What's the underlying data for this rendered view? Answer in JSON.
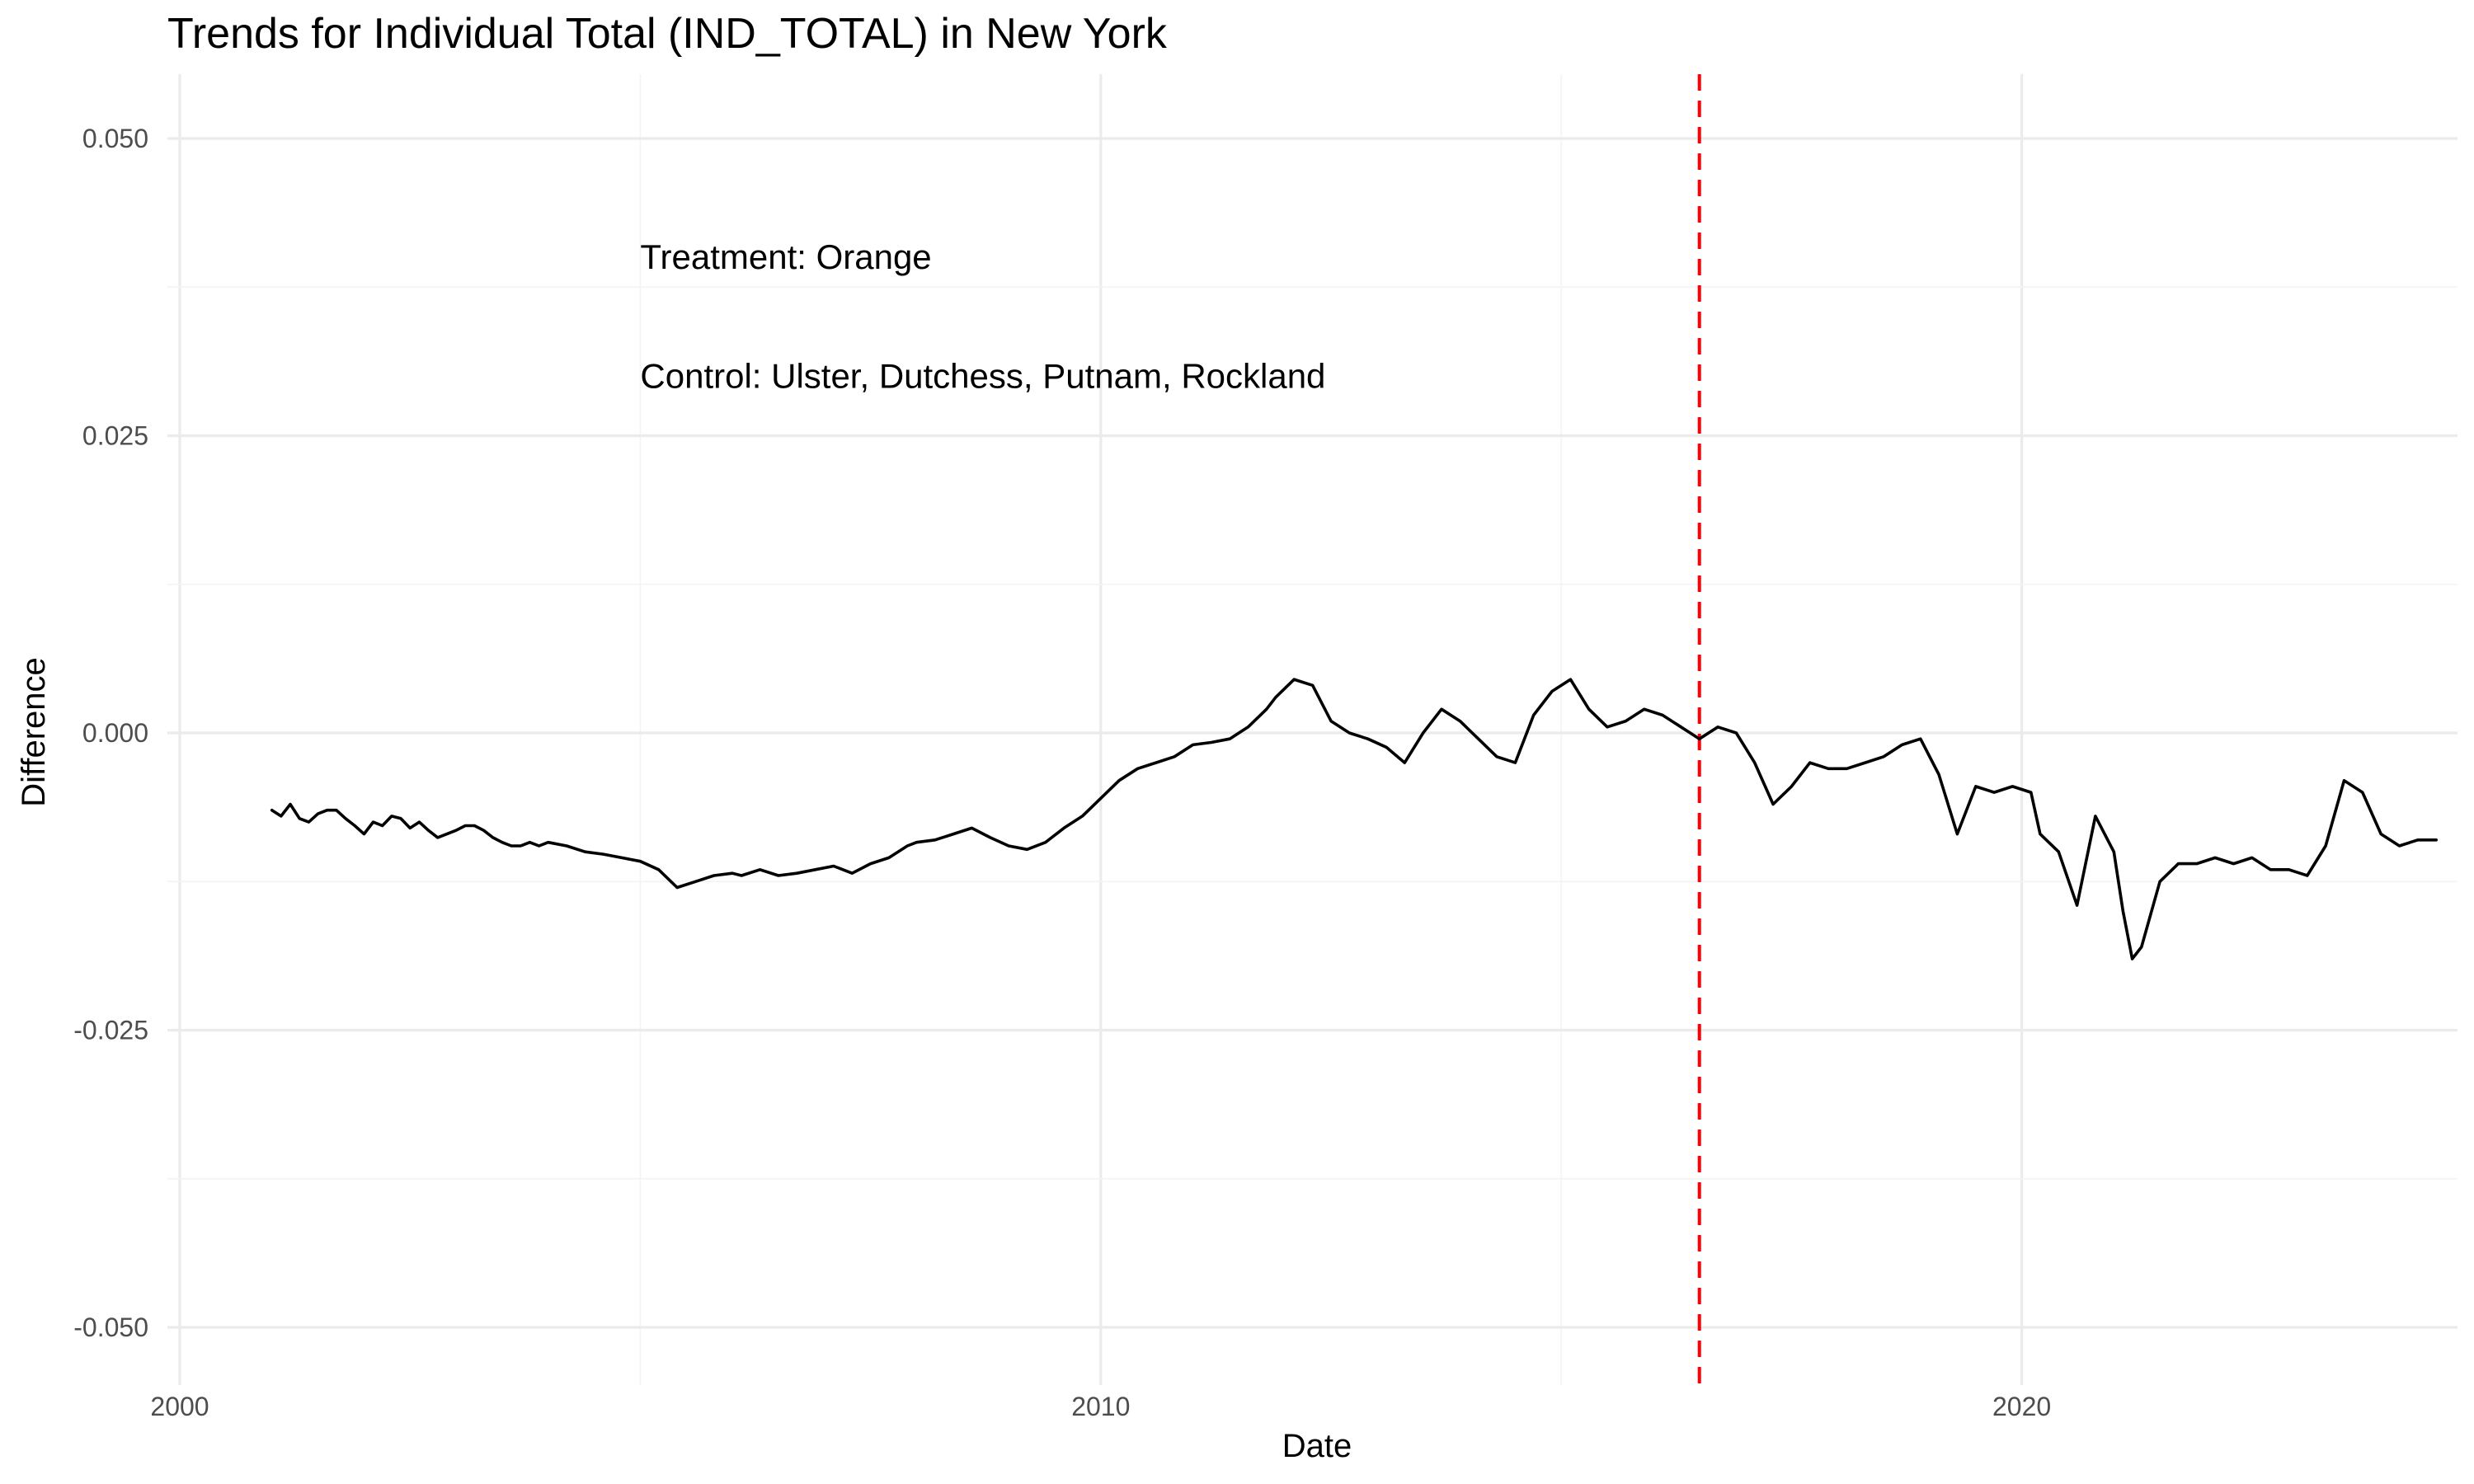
{
  "chart_data": {
    "type": "line",
    "title": "Trends for Individual Total (IND_TOTAL) in New York",
    "xlabel": "Date",
    "ylabel": "Difference",
    "xlim": [
      2000,
      2025
    ],
    "ylim": [
      -0.05,
      0.05
    ],
    "x_ticks": [
      2000,
      2010,
      2020
    ],
    "x_tick_labels": [
      "2000",
      "2010",
      "2020"
    ],
    "y_ticks": [
      -0.05,
      -0.025,
      0,
      0.025,
      0.05
    ],
    "y_tick_labels": [
      "-0.050",
      "-0.025",
      "0.000",
      "0.025",
      "0.050"
    ],
    "grid": true,
    "annotations": [
      {
        "text": "Treatment: Orange",
        "x": 2005,
        "y": 0.04
      },
      {
        "text": "Control: Ulster, Dutchess, Putnam, Rockland",
        "x": 2005,
        "y": 0.03
      }
    ],
    "vertical_line": {
      "x": 2016.5,
      "style": "dashed",
      "color": "#ff0000"
    },
    "series": [
      {
        "color": "#000000",
        "x": [
          2001.0,
          2001.1,
          2001.2,
          2001.3,
          2001.4,
          2001.5,
          2001.6,
          2001.7,
          2001.8,
          2001.9,
          2002.0,
          2002.1,
          2002.2,
          2002.3,
          2002.4,
          2002.5,
          2002.6,
          2002.7,
          2002.8,
          2002.9,
          2003.0,
          2003.1,
          2003.2,
          2003.3,
          2003.4,
          2003.5,
          2003.6,
          2003.7,
          2003.8,
          2003.9,
          2004.0,
          2004.2,
          2004.4,
          2004.6,
          2004.8,
          2005.0,
          2005.2,
          2005.4,
          2005.6,
          2005.8,
          2006.0,
          2006.1,
          2006.3,
          2006.5,
          2006.7,
          2006.9,
          2007.1,
          2007.3,
          2007.5,
          2007.7,
          2007.9,
          2008.0,
          2008.2,
          2008.4,
          2008.6,
          2008.8,
          2009.0,
          2009.2,
          2009.4,
          2009.6,
          2009.8,
          2010.0,
          2010.2,
          2010.4,
          2010.6,
          2010.8,
          2011.0,
          2011.2,
          2011.4,
          2011.6,
          2011.8,
          2011.9,
          2012.1,
          2012.3,
          2012.5,
          2012.7,
          2012.9,
          2013.1,
          2013.3,
          2013.5,
          2013.7,
          2013.9,
          2014.1,
          2014.3,
          2014.5,
          2014.7,
          2014.9,
          2015.1,
          2015.3,
          2015.5,
          2015.7,
          2015.9,
          2016.1,
          2016.3,
          2016.5,
          2016.7,
          2016.9,
          2017.1,
          2017.3,
          2017.5,
          2017.7,
          2017.9,
          2018.1,
          2018.3,
          2018.5,
          2018.7,
          2018.9,
          2019.1,
          2019.3,
          2019.5,
          2019.7,
          2019.9,
          2020.1,
          2020.2,
          2020.4,
          2020.6,
          2020.8,
          2020.9,
          2021.0,
          2021.1,
          2021.2,
          2021.3,
          2021.5,
          2021.7,
          2021.9,
          2022.1,
          2022.3,
          2022.5,
          2022.7,
          2022.9,
          2023.1,
          2023.3,
          2023.5,
          2023.7,
          2023.9,
          2024.1,
          2024.3,
          2024.5
        ],
        "y": [
          -0.0065,
          -0.007,
          -0.006,
          -0.0072,
          -0.0075,
          -0.0068,
          -0.0065,
          -0.0065,
          -0.0072,
          -0.0078,
          -0.0085,
          -0.0075,
          -0.0078,
          -0.007,
          -0.0072,
          -0.008,
          -0.0075,
          -0.0082,
          -0.0088,
          -0.0085,
          -0.0082,
          -0.0078,
          -0.0078,
          -0.0082,
          -0.0088,
          -0.0092,
          -0.0095,
          -0.0095,
          -0.0092,
          -0.0095,
          -0.0092,
          -0.0095,
          -0.01,
          -0.0102,
          -0.0105,
          -0.0108,
          -0.0115,
          -0.013,
          -0.0125,
          -0.012,
          -0.0118,
          -0.012,
          -0.0115,
          -0.012,
          -0.0118,
          -0.0115,
          -0.0112,
          -0.0118,
          -0.011,
          -0.0105,
          -0.0095,
          -0.0092,
          -0.009,
          -0.0085,
          -0.008,
          -0.0088,
          -0.0095,
          -0.0098,
          -0.0092,
          -0.008,
          -0.007,
          -0.0055,
          -0.004,
          -0.003,
          -0.0025,
          -0.002,
          -0.001,
          -0.0008,
          -0.0005,
          0.0005,
          0.002,
          0.003,
          0.0045,
          0.004,
          0.001,
          0.0,
          -0.0005,
          -0.0012,
          -0.0025,
          0.0,
          0.002,
          0.001,
          -0.0005,
          -0.002,
          -0.0025,
          0.0015,
          0.0035,
          0.0045,
          0.002,
          0.0005,
          0.001,
          0.002,
          0.0015,
          0.0005,
          -0.0005,
          0.0005,
          0.0,
          -0.0025,
          -0.006,
          -0.0045,
          -0.0025,
          -0.003,
          -0.003,
          -0.0025,
          -0.002,
          -0.001,
          -0.0005,
          -0.0035,
          -0.0085,
          -0.0045,
          -0.005,
          -0.0045,
          -0.005,
          -0.0085,
          -0.01,
          -0.0145,
          -0.007,
          -0.0085,
          -0.01,
          -0.015,
          -0.019,
          -0.018,
          -0.0125,
          -0.011,
          -0.011,
          -0.0105,
          -0.011,
          -0.0105,
          -0.0115,
          -0.0115,
          -0.012,
          -0.0095,
          -0.004,
          -0.005,
          -0.0085,
          -0.0095,
          -0.009,
          -0.009
        ]
      }
    ]
  }
}
